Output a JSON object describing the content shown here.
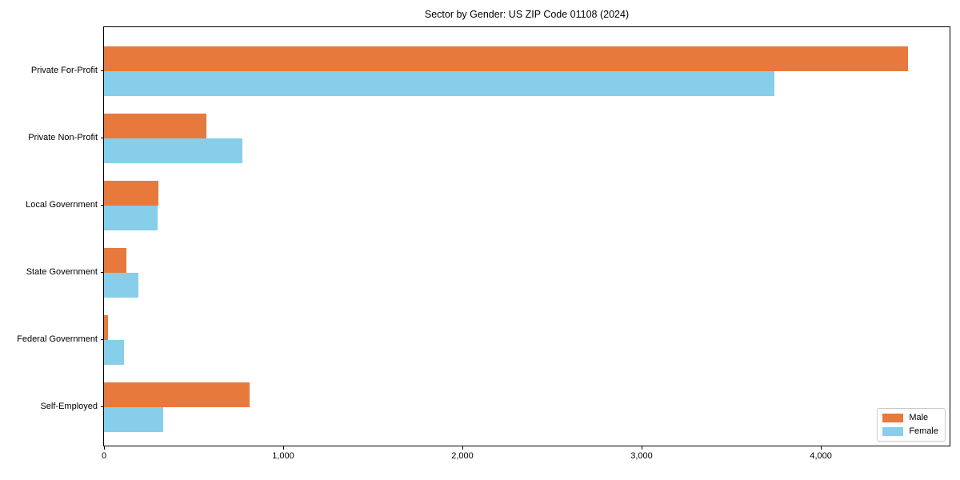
{
  "chart_data": {
    "type": "bar",
    "orientation": "horizontal",
    "title": "Sector by Gender: US ZIP Code 01108 (2024)",
    "categories": [
      "Private For-Profit",
      "Private Non-Profit",
      "Local Government",
      "State Government",
      "Federal Government",
      "Self-Employed"
    ],
    "series": [
      {
        "name": "Male",
        "color": "#E8793C",
        "values": [
          4485,
          570,
          305,
          125,
          20,
          810
        ]
      },
      {
        "name": "Female",
        "color": "#87CEEB",
        "values": [
          3740,
          770,
          300,
          190,
          110,
          330
        ]
      }
    ],
    "xlabel": "",
    "ylabel": "",
    "xlim": [
      0,
      4714
    ],
    "x_ticks": [
      0,
      1000,
      2000,
      3000,
      4000
    ],
    "x_tick_labels": [
      "0",
      "1,000",
      "2,000",
      "3,000",
      "4,000"
    ],
    "grid": false,
    "legend": {
      "position": "lower right",
      "entries": [
        "Male",
        "Female"
      ]
    }
  }
}
